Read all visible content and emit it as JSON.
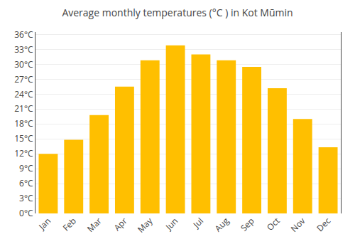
{
  "chart_data": {
    "type": "bar",
    "title": "Average monthly temperatures (°C ) in Kot Mūmin",
    "categories": [
      "Jan",
      "Feb",
      "Mar",
      "Apr",
      "May",
      "Jun",
      "Jul",
      "Aug",
      "Sep",
      "Oct",
      "Nov",
      "Dec"
    ],
    "values": [
      12.0,
      14.8,
      19.8,
      25.5,
      30.8,
      33.8,
      32.0,
      30.8,
      29.5,
      25.2,
      19.0,
      13.3
    ],
    "color": "#FFBF00",
    "ylim": [
      0,
      36.5
    ],
    "yticks": [
      {
        "value": 0,
        "label": "0°C"
      },
      {
        "value": 3,
        "label": "3°C"
      },
      {
        "value": 6,
        "label": "6°C"
      },
      {
        "value": 9,
        "label": "9°C"
      },
      {
        "value": 12,
        "label": "12°C"
      },
      {
        "value": 15,
        "label": "15°C"
      },
      {
        "value": 18,
        "label": "18°C"
      },
      {
        "value": 21,
        "label": "21°C"
      },
      {
        "value": 24,
        "label": "24°C"
      },
      {
        "value": 27,
        "label": "27°C"
      },
      {
        "value": 30,
        "label": "30°C"
      },
      {
        "value": 33,
        "label": "33°C"
      },
      {
        "value": 36,
        "label": "36°C"
      }
    ],
    "grid": true
  }
}
